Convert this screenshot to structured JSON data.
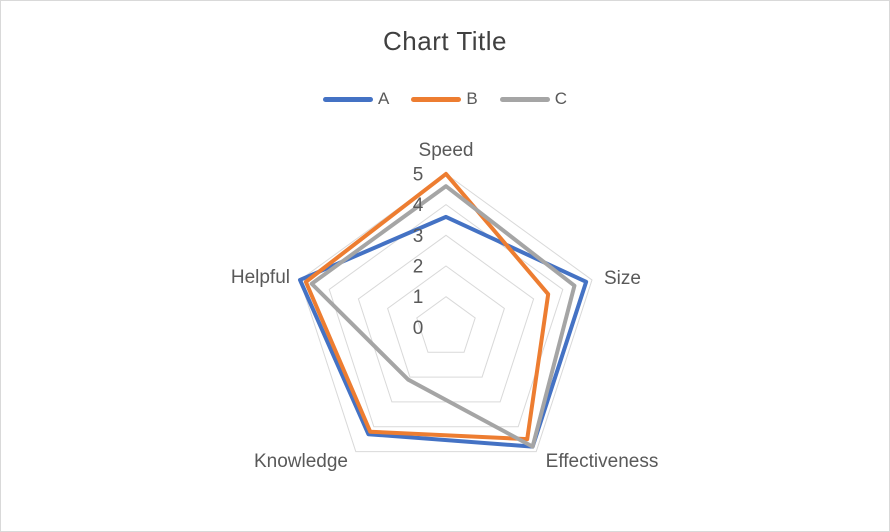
{
  "title": "Chart Title",
  "chart_data": {
    "type": "radar",
    "title": "Chart Title",
    "categories": [
      "Speed",
      "Size",
      "Effectiveness",
      "Knowledge",
      "Helpful"
    ],
    "series": [
      {
        "name": "A",
        "color": "#4472C4",
        "values": [
          3.6,
          4.8,
          4.8,
          4.3,
          5.0
        ]
      },
      {
        "name": "B",
        "color": "#ED7D31",
        "values": [
          5.0,
          3.5,
          4.5,
          4.2,
          4.8
        ]
      },
      {
        "name": "C",
        "color": "#A5A5A5",
        "values": [
          4.6,
          4.4,
          4.8,
          2.1,
          4.6
        ]
      }
    ],
    "axis": {
      "min": 0,
      "max": 5,
      "ticks": [
        0,
        1,
        2,
        3,
        4,
        5
      ],
      "grid": true,
      "grid_color": "#D9D9D9"
    },
    "legend_position": "top",
    "text_color": "#595959",
    "title_color": "#404040",
    "line_width": 4
  }
}
